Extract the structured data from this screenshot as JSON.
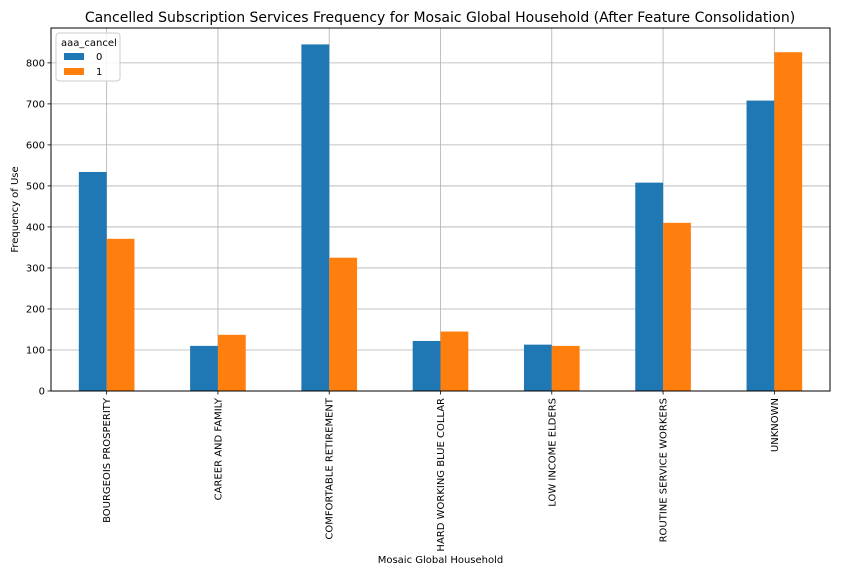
{
  "chart_data": {
    "type": "bar",
    "title": "Cancelled Subscription Services Frequency for Mosaic Global Household (After Feature Consolidation)",
    "xlabel": "Mosaic Global Household",
    "ylabel": "Frequency of Use",
    "ylim": [
      0,
      885
    ],
    "yticks": [
      0,
      100,
      200,
      300,
      400,
      500,
      600,
      700,
      800
    ],
    "grid": true,
    "legend": {
      "title": "aaa_cancel",
      "placement": "top-left"
    },
    "categories": [
      "BOURGEOIS PROSPERITY",
      "CAREER AND FAMILY",
      "COMFORTABLE RETIREMENT",
      "HARD WORKING BLUE COLLAR",
      "LOW INCOME ELDERS",
      "ROUTINE SERVICE WORKERS",
      "UNKNOWN"
    ],
    "series": [
      {
        "name": "0",
        "color": "#1f77b4",
        "values": [
          534,
          110,
          845,
          122,
          113,
          508,
          708
        ]
      },
      {
        "name": "1",
        "color": "#ff7f0e",
        "values": [
          371,
          137,
          325,
          145,
          110,
          410,
          826
        ]
      }
    ]
  }
}
